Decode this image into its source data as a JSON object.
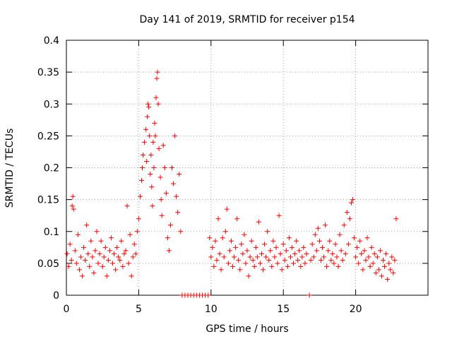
{
  "chart_data": {
    "type": "scatter",
    "title": "Day 141 of 2019, SRMTID for receiver p154",
    "xlabel": "GPS time / hours",
    "ylabel": "SRMTID / TECUs",
    "xlim": [
      0,
      25
    ],
    "ylim": [
      0,
      0.4
    ],
    "grid": true,
    "marker": "+",
    "x_ticks": [
      {
        "value": 0,
        "label": "0"
      },
      {
        "value": 5,
        "label": "5"
      },
      {
        "value": 10,
        "label": "10"
      },
      {
        "value": 15,
        "label": "15"
      },
      {
        "value": 20,
        "label": "20"
      }
    ],
    "y_ticks": [
      {
        "value": 0,
        "label": "0"
      },
      {
        "value": 0.05,
        "label": "0.05"
      },
      {
        "value": 0.1,
        "label": "0.1"
      },
      {
        "value": 0.15,
        "label": "0.15"
      },
      {
        "value": 0.2,
        "label": "0.2"
      },
      {
        "value": 0.25,
        "label": "0.25"
      },
      {
        "value": 0.3,
        "label": "0.3"
      },
      {
        "value": 0.35,
        "label": "0.35"
      },
      {
        "value": 0.4,
        "label": "0.4"
      }
    ],
    "series": [
      {
        "name": "SRMTID",
        "color": "#ff0000",
        "points": [
          [
            0.05,
            0.065
          ],
          [
            0.15,
            0.045
          ],
          [
            0.25,
            0.08
          ],
          [
            0.35,
            0.055
          ],
          [
            0.4,
            0.14
          ],
          [
            0.45,
            0.155
          ],
          [
            0.5,
            0.135
          ],
          [
            0.6,
            0.07
          ],
          [
            0.7,
            0.05
          ],
          [
            0.8,
            0.095
          ],
          [
            0.9,
            0.04
          ],
          [
            1.0,
            0.06
          ],
          [
            1.1,
            0.03
          ],
          [
            1.2,
            0.075
          ],
          [
            1.3,
            0.055
          ],
          [
            1.4,
            0.11
          ],
          [
            1.5,
            0.065
          ],
          [
            1.6,
            0.045
          ],
          [
            1.7,
            0.085
          ],
          [
            1.8,
            0.06
          ],
          [
            1.9,
            0.035
          ],
          [
            2.0,
            0.07
          ],
          [
            2.1,
            0.1
          ],
          [
            2.2,
            0.05
          ],
          [
            2.3,
            0.065
          ],
          [
            2.4,
            0.085
          ],
          [
            2.5,
            0.045
          ],
          [
            2.6,
            0.06
          ],
          [
            2.7,
            0.075
          ],
          [
            2.8,
            0.03
          ],
          [
            2.9,
            0.055
          ],
          [
            3.0,
            0.07
          ],
          [
            3.1,
            0.09
          ],
          [
            3.2,
            0.05
          ],
          [
            3.3,
            0.065
          ],
          [
            3.4,
            0.04
          ],
          [
            3.5,
            0.075
          ],
          [
            3.6,
            0.06
          ],
          [
            3.7,
            0.055
          ],
          [
            3.8,
            0.085
          ],
          [
            3.9,
            0.045
          ],
          [
            4.0,
            0.065
          ],
          [
            4.1,
            0.07
          ],
          [
            4.2,
            0.14
          ],
          [
            4.3,
            0.05
          ],
          [
            4.4,
            0.095
          ],
          [
            4.5,
            0.03
          ],
          [
            4.6,
            0.06
          ],
          [
            4.7,
            0.08
          ],
          [
            4.8,
            0.065
          ],
          [
            4.9,
            0.1
          ],
          [
            5.0,
            0.12
          ],
          [
            5.1,
            0.155
          ],
          [
            5.2,
            0.18
          ],
          [
            5.25,
            0.2
          ],
          [
            5.3,
            0.22
          ],
          [
            5.4,
            0.24
          ],
          [
            5.5,
            0.26
          ],
          [
            5.55,
            0.21
          ],
          [
            5.6,
            0.28
          ],
          [
            5.65,
            0.3
          ],
          [
            5.7,
            0.295
          ],
          [
            5.75,
            0.25
          ],
          [
            5.8,
            0.19
          ],
          [
            5.85,
            0.22
          ],
          [
            5.9,
            0.17
          ],
          [
            5.95,
            0.14
          ],
          [
            6.0,
            0.24
          ],
          [
            6.05,
            0.2
          ],
          [
            6.1,
            0.27
          ],
          [
            6.15,
            0.25
          ],
          [
            6.2,
            0.31
          ],
          [
            6.25,
            0.34
          ],
          [
            6.3,
            0.35
          ],
          [
            6.35,
            0.3
          ],
          [
            6.4,
            0.23
          ],
          [
            6.5,
            0.185
          ],
          [
            6.55,
            0.15
          ],
          [
            6.6,
            0.125
          ],
          [
            6.7,
            0.235
          ],
          [
            6.8,
            0.2
          ],
          [
            6.9,
            0.16
          ],
          [
            7.0,
            0.09
          ],
          [
            7.1,
            0.07
          ],
          [
            7.2,
            0.11
          ],
          [
            7.3,
            0.2
          ],
          [
            7.4,
            0.175
          ],
          [
            7.5,
            0.25
          ],
          [
            7.6,
            0.155
          ],
          [
            7.7,
            0.13
          ],
          [
            7.8,
            0.19
          ],
          [
            7.9,
            0.1
          ],
          [
            8.0,
            0.0
          ],
          [
            8.2,
            0.0
          ],
          [
            8.4,
            0.0
          ],
          [
            8.6,
            0.0
          ],
          [
            8.8,
            0.0
          ],
          [
            9.0,
            0.0
          ],
          [
            9.2,
            0.0
          ],
          [
            9.4,
            0.0
          ],
          [
            9.6,
            0.0
          ],
          [
            9.8,
            0.0
          ],
          [
            9.9,
            0.09
          ],
          [
            10.0,
            0.06
          ],
          [
            10.1,
            0.075
          ],
          [
            10.2,
            0.045
          ],
          [
            10.3,
            0.085
          ],
          [
            10.4,
            0.055
          ],
          [
            10.5,
            0.12
          ],
          [
            10.6,
            0.065
          ],
          [
            10.7,
            0.04
          ],
          [
            10.8,
            0.09
          ],
          [
            10.9,
            0.06
          ],
          [
            11.0,
            0.1
          ],
          [
            11.1,
            0.135
          ],
          [
            11.2,
            0.05
          ],
          [
            11.3,
            0.07
          ],
          [
            11.4,
            0.085
          ],
          [
            11.5,
            0.045
          ],
          [
            11.6,
            0.06
          ],
          [
            11.7,
            0.075
          ],
          [
            11.8,
            0.12
          ],
          [
            11.9,
            0.055
          ],
          [
            12.0,
            0.04
          ],
          [
            12.1,
            0.08
          ],
          [
            12.2,
            0.065
          ],
          [
            12.3,
            0.095
          ],
          [
            12.4,
            0.05
          ],
          [
            12.5,
            0.07
          ],
          [
            12.6,
            0.03
          ],
          [
            12.7,
            0.06
          ],
          [
            12.8,
            0.085
          ],
          [
            12.9,
            0.055
          ],
          [
            13.0,
            0.045
          ],
          [
            13.1,
            0.075
          ],
          [
            13.2,
            0.06
          ],
          [
            13.3,
            0.115
          ],
          [
            13.4,
            0.05
          ],
          [
            13.5,
            0.065
          ],
          [
            13.6,
            0.04
          ],
          [
            13.7,
            0.08
          ],
          [
            13.8,
            0.06
          ],
          [
            13.9,
            0.1
          ],
          [
            14.0,
            0.055
          ],
          [
            14.1,
            0.07
          ],
          [
            14.2,
            0.045
          ],
          [
            14.3,
            0.085
          ],
          [
            14.4,
            0.06
          ],
          [
            14.5,
            0.075
          ],
          [
            14.6,
            0.05
          ],
          [
            14.7,
            0.125
          ],
          [
            14.8,
            0.065
          ],
          [
            14.9,
            0.04
          ],
          [
            15.0,
            0.08
          ],
          [
            15.1,
            0.055
          ],
          [
            15.2,
            0.07
          ],
          [
            15.3,
            0.045
          ],
          [
            15.4,
            0.09
          ],
          [
            15.5,
            0.06
          ],
          [
            15.6,
            0.075
          ],
          [
            15.7,
            0.05
          ],
          [
            15.8,
            0.065
          ],
          [
            15.9,
            0.085
          ],
          [
            16.0,
            0.055
          ],
          [
            16.1,
            0.07
          ],
          [
            16.2,
            0.045
          ],
          [
            16.3,
            0.06
          ],
          [
            16.4,
            0.075
          ],
          [
            16.5,
            0.05
          ],
          [
            16.6,
            0.065
          ],
          [
            16.8,
            0.0
          ],
          [
            16.9,
            0.055
          ],
          [
            17.0,
            0.08
          ],
          [
            17.1,
            0.06
          ],
          [
            17.2,
            0.095
          ],
          [
            17.3,
            0.07
          ],
          [
            17.4,
            0.105
          ],
          [
            17.5,
            0.085
          ],
          [
            17.6,
            0.055
          ],
          [
            17.7,
            0.075
          ],
          [
            17.8,
            0.06
          ],
          [
            17.9,
            0.11
          ],
          [
            18.0,
            0.045
          ],
          [
            18.1,
            0.07
          ],
          [
            18.2,
            0.085
          ],
          [
            18.3,
            0.055
          ],
          [
            18.4,
            0.065
          ],
          [
            18.5,
            0.05
          ],
          [
            18.6,
            0.08
          ],
          [
            18.7,
            0.06
          ],
          [
            18.8,
            0.045
          ],
          [
            18.9,
            0.095
          ],
          [
            19.0,
            0.07
          ],
          [
            19.1,
            0.055
          ],
          [
            19.2,
            0.11
          ],
          [
            19.3,
            0.065
          ],
          [
            19.4,
            0.13
          ],
          [
            19.5,
            0.08
          ],
          [
            19.6,
            0.12
          ],
          [
            19.7,
            0.145
          ],
          [
            19.8,
            0.15
          ],
          [
            19.9,
            0.09
          ],
          [
            20.0,
            0.06
          ],
          [
            20.1,
            0.075
          ],
          [
            20.2,
            0.05
          ],
          [
            20.3,
            0.085
          ],
          [
            20.4,
            0.065
          ],
          [
            20.5,
            0.04
          ],
          [
            20.6,
            0.07
          ],
          [
            20.7,
            0.055
          ],
          [
            20.8,
            0.09
          ],
          [
            20.9,
            0.06
          ],
          [
            21.0,
            0.045
          ],
          [
            21.1,
            0.075
          ],
          [
            21.2,
            0.05
          ],
          [
            21.3,
            0.065
          ],
          [
            21.4,
            0.035
          ],
          [
            21.5,
            0.06
          ],
          [
            21.6,
            0.04
          ],
          [
            21.7,
            0.07
          ],
          [
            21.8,
            0.03
          ],
          [
            21.9,
            0.055
          ],
          [
            22.0,
            0.045
          ],
          [
            22.1,
            0.065
          ],
          [
            22.2,
            0.025
          ],
          [
            22.3,
            0.05
          ],
          [
            22.4,
            0.04
          ],
          [
            22.5,
            0.06
          ],
          [
            22.6,
            0.035
          ],
          [
            22.7,
            0.055
          ],
          [
            22.8,
            0.12
          ]
        ]
      }
    ]
  }
}
